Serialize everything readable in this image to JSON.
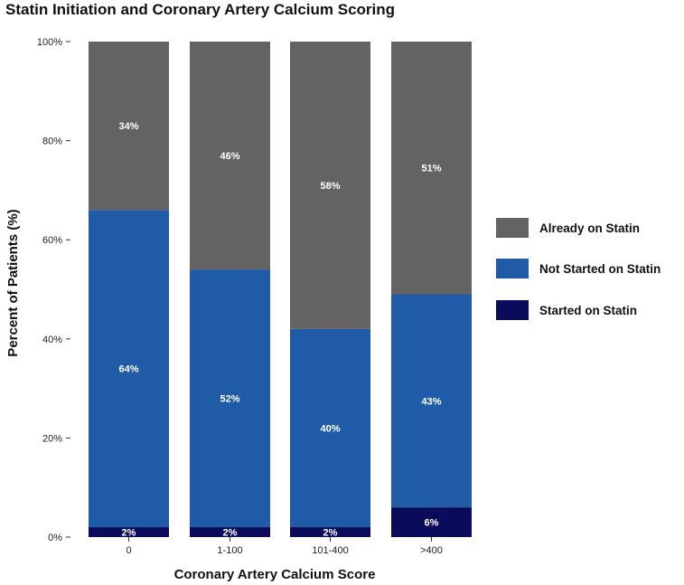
{
  "chart_data": {
    "type": "bar",
    "stacked": true,
    "title": "Statin Initiation and Coronary Artery Calcium Scoring",
    "xlabel": "Coronary Artery Calcium Score",
    "ylabel": "Percent of Patients (%)",
    "ylim": [
      0,
      100
    ],
    "yticks": [
      0,
      20,
      40,
      60,
      80,
      100
    ],
    "ytick_labels": [
      "0%",
      "20%",
      "40%",
      "60%",
      "80%",
      "100%"
    ],
    "categories": [
      "0",
      "1-100",
      "101-400",
      ">400"
    ],
    "series": [
      {
        "name": "Started on Statin",
        "color": "#0b0b5c",
        "values": [
          2,
          2,
          2,
          6
        ],
        "labels": [
          "2%",
          "2%",
          "2%",
          "6%"
        ]
      },
      {
        "name": "Not Started on Statin",
        "color": "#1f5ba6",
        "values": [
          64,
          52,
          40,
          43
        ],
        "labels": [
          "64%",
          "52%",
          "40%",
          "43%"
        ]
      },
      {
        "name": "Already on Statin",
        "color": "#636363",
        "values": [
          34,
          46,
          58,
          51
        ],
        "labels": [
          "34%",
          "46%",
          "58%",
          "51%"
        ]
      }
    ],
    "legend": {
      "position": "right",
      "order": [
        "Already on Statin",
        "Not Started on Statin",
        "Started on Statin"
      ]
    },
    "grid": false
  }
}
